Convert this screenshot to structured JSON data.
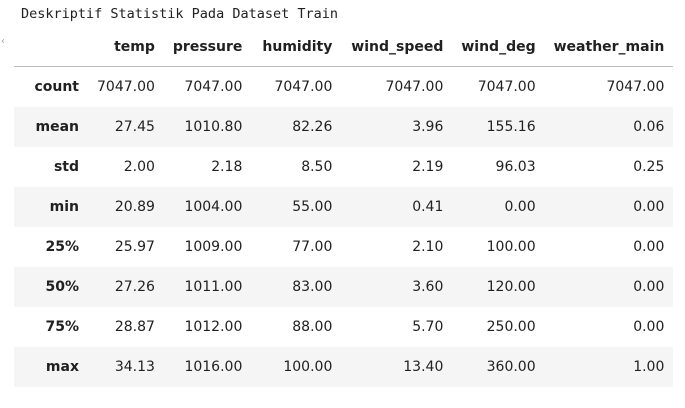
{
  "caption": "Deskriptif Statistik Pada Dataset Train",
  "edge_marker": "‹",
  "table": {
    "columns": [
      "",
      "temp",
      "pressure",
      "humidity",
      "wind_speed",
      "wind_deg",
      "weather_main"
    ],
    "rows": [
      {
        "label": "count",
        "values": [
          "7047.00",
          "7047.00",
          "7047.00",
          "7047.00",
          "7047.00",
          "7047.00"
        ]
      },
      {
        "label": "mean",
        "values": [
          "27.45",
          "1010.80",
          "82.26",
          "3.96",
          "155.16",
          "0.06"
        ]
      },
      {
        "label": "std",
        "values": [
          "2.00",
          "2.18",
          "8.50",
          "2.19",
          "96.03",
          "0.25"
        ]
      },
      {
        "label": "min",
        "values": [
          "20.89",
          "1004.00",
          "55.00",
          "0.41",
          "0.00",
          "0.00"
        ]
      },
      {
        "label": "25%",
        "values": [
          "25.97",
          "1009.00",
          "77.00",
          "2.10",
          "100.00",
          "0.00"
        ]
      },
      {
        "label": "50%",
        "values": [
          "27.26",
          "1011.00",
          "83.00",
          "3.60",
          "120.00",
          "0.00"
        ]
      },
      {
        "label": "75%",
        "values": [
          "28.87",
          "1012.00",
          "88.00",
          "5.70",
          "250.00",
          "0.00"
        ]
      },
      {
        "label": "max",
        "values": [
          "34.13",
          "1016.00",
          "100.00",
          "13.40",
          "360.00",
          "1.00"
        ]
      }
    ]
  }
}
